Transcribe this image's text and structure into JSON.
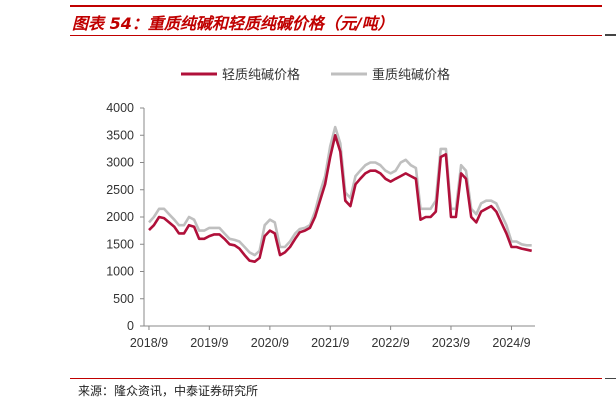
{
  "figure": {
    "title": "图表 54：重质纯碱和轻质纯碱价格（元/吨）",
    "source": "来源：隆众资讯，中泰证券研究所"
  },
  "chart_data": {
    "type": "line",
    "xlabel": "",
    "ylabel": "",
    "ylim": [
      0,
      4000
    ],
    "yticks": [
      0,
      500,
      1000,
      1500,
      2000,
      2500,
      3000,
      3500,
      4000
    ],
    "xlim": [
      "2018-09",
      "2025-01"
    ],
    "xticks": [
      "2018/9",
      "2019/9",
      "2020/9",
      "2021/9",
      "2022/9",
      "2023/9",
      "2024/9"
    ],
    "legend_position": "top-center",
    "grid": false,
    "series": [
      {
        "name": "轻质纯碱价格",
        "color": "#b0103a",
        "points": [
          [
            "2018-09-01",
            1760
          ],
          [
            "2018-10-01",
            1850
          ],
          [
            "2018-11-01",
            2000
          ],
          [
            "2018-12-01",
            1980
          ],
          [
            "2019-01-01",
            1900
          ],
          [
            "2019-02-01",
            1820
          ],
          [
            "2019-03-01",
            1700
          ],
          [
            "2019-04-01",
            1700
          ],
          [
            "2019-05-01",
            1850
          ],
          [
            "2019-06-01",
            1820
          ],
          [
            "2019-07-01",
            1600
          ],
          [
            "2019-08-01",
            1600
          ],
          [
            "2019-09-01",
            1650
          ],
          [
            "2019-10-01",
            1680
          ],
          [
            "2019-11-01",
            1680
          ],
          [
            "2019-12-01",
            1600
          ],
          [
            "2020-01-01",
            1500
          ],
          [
            "2020-02-01",
            1480
          ],
          [
            "2020-03-01",
            1420
          ],
          [
            "2020-04-01",
            1300
          ],
          [
            "2020-05-01",
            1200
          ],
          [
            "2020-06-01",
            1180
          ],
          [
            "2020-07-01",
            1250
          ],
          [
            "2020-08-01",
            1650
          ],
          [
            "2020-09-01",
            1750
          ],
          [
            "2020-10-01",
            1700
          ],
          [
            "2020-11-01",
            1300
          ],
          [
            "2020-12-01",
            1350
          ],
          [
            "2021-01-01",
            1450
          ],
          [
            "2021-02-01",
            1600
          ],
          [
            "2021-03-01",
            1720
          ],
          [
            "2021-04-01",
            1750
          ],
          [
            "2021-05-01",
            1800
          ],
          [
            "2021-06-01",
            2000
          ],
          [
            "2021-07-01",
            2300
          ],
          [
            "2021-08-01",
            2600
          ],
          [
            "2021-09-01",
            3100
          ],
          [
            "2021-10-01",
            3500
          ],
          [
            "2021-11-01",
            3200
          ],
          [
            "2021-12-01",
            2300
          ],
          [
            "2022-01-01",
            2200
          ],
          [
            "2022-02-01",
            2600
          ],
          [
            "2022-03-01",
            2700
          ],
          [
            "2022-04-01",
            2800
          ],
          [
            "2022-05-01",
            2850
          ],
          [
            "2022-06-01",
            2850
          ],
          [
            "2022-07-01",
            2800
          ],
          [
            "2022-08-01",
            2700
          ],
          [
            "2022-09-01",
            2650
          ],
          [
            "2022-10-01",
            2700
          ],
          [
            "2022-11-01",
            2750
          ],
          [
            "2022-12-01",
            2800
          ],
          [
            "2023-01-01",
            2750
          ],
          [
            "2023-02-01",
            2700
          ],
          [
            "2023-03-01",
            1950
          ],
          [
            "2023-04-01",
            2000
          ],
          [
            "2023-05-01",
            2000
          ],
          [
            "2023-06-01",
            2100
          ],
          [
            "2023-07-01",
            3100
          ],
          [
            "2023-08-01",
            3150
          ],
          [
            "2023-09-01",
            2000
          ],
          [
            "2023-10-01",
            2000
          ],
          [
            "2023-11-01",
            2800
          ],
          [
            "2023-12-01",
            2700
          ],
          [
            "2024-01-01",
            2000
          ],
          [
            "2024-02-01",
            1900
          ],
          [
            "2024-03-01",
            2100
          ],
          [
            "2024-04-01",
            2150
          ],
          [
            "2024-05-01",
            2200
          ],
          [
            "2024-06-01",
            2100
          ],
          [
            "2024-07-01",
            1900
          ],
          [
            "2024-08-01",
            1700
          ],
          [
            "2024-09-01",
            1450
          ],
          [
            "2024-10-01",
            1450
          ],
          [
            "2024-11-01",
            1420
          ],
          [
            "2024-12-01",
            1400
          ],
          [
            "2025-01-01",
            1380
          ]
        ]
      },
      {
        "name": "重质纯碱价格",
        "color": "#bfbfbf",
        "points": [
          [
            "2018-09-01",
            1900
          ],
          [
            "2018-10-01",
            2000
          ],
          [
            "2018-11-01",
            2150
          ],
          [
            "2018-12-01",
            2150
          ],
          [
            "2019-01-01",
            2050
          ],
          [
            "2019-02-01",
            1950
          ],
          [
            "2019-03-01",
            1850
          ],
          [
            "2019-04-01",
            1850
          ],
          [
            "2019-05-01",
            2000
          ],
          [
            "2019-06-01",
            1950
          ],
          [
            "2019-07-01",
            1750
          ],
          [
            "2019-08-01",
            1750
          ],
          [
            "2019-09-01",
            1800
          ],
          [
            "2019-10-01",
            1800
          ],
          [
            "2019-11-01",
            1800
          ],
          [
            "2019-12-01",
            1700
          ],
          [
            "2020-01-01",
            1600
          ],
          [
            "2020-02-01",
            1580
          ],
          [
            "2020-03-01",
            1550
          ],
          [
            "2020-04-01",
            1450
          ],
          [
            "2020-05-01",
            1350
          ],
          [
            "2020-06-01",
            1300
          ],
          [
            "2020-07-01",
            1380
          ],
          [
            "2020-08-01",
            1850
          ],
          [
            "2020-09-01",
            1950
          ],
          [
            "2020-10-01",
            1900
          ],
          [
            "2020-11-01",
            1450
          ],
          [
            "2020-12-01",
            1450
          ],
          [
            "2021-01-01",
            1550
          ],
          [
            "2021-02-01",
            1700
          ],
          [
            "2021-03-01",
            1780
          ],
          [
            "2021-04-01",
            1800
          ],
          [
            "2021-05-01",
            1850
          ],
          [
            "2021-06-01",
            2100
          ],
          [
            "2021-07-01",
            2450
          ],
          [
            "2021-08-01",
            2750
          ],
          [
            "2021-09-01",
            3300
          ],
          [
            "2021-10-01",
            3650
          ],
          [
            "2021-11-01",
            3350
          ],
          [
            "2021-12-01",
            2450
          ],
          [
            "2022-01-01",
            2350
          ],
          [
            "2022-02-01",
            2750
          ],
          [
            "2022-03-01",
            2850
          ],
          [
            "2022-04-01",
            2950
          ],
          [
            "2022-05-01",
            3000
          ],
          [
            "2022-06-01",
            3000
          ],
          [
            "2022-07-01",
            2950
          ],
          [
            "2022-08-01",
            2850
          ],
          [
            "2022-09-01",
            2800
          ],
          [
            "2022-10-01",
            2850
          ],
          [
            "2022-11-01",
            3000
          ],
          [
            "2022-12-01",
            3050
          ],
          [
            "2023-01-01",
            2950
          ],
          [
            "2023-02-01",
            2900
          ],
          [
            "2023-03-01",
            2150
          ],
          [
            "2023-04-01",
            2150
          ],
          [
            "2023-05-01",
            2150
          ],
          [
            "2023-06-01",
            2300
          ],
          [
            "2023-07-01",
            3250
          ],
          [
            "2023-08-01",
            3250
          ],
          [
            "2023-09-01",
            2150
          ],
          [
            "2023-10-01",
            2150
          ],
          [
            "2023-11-01",
            2950
          ],
          [
            "2023-12-01",
            2850
          ],
          [
            "2024-01-01",
            2150
          ],
          [
            "2024-02-01",
            2050
          ],
          [
            "2024-03-01",
            2250
          ],
          [
            "2024-04-01",
            2300
          ],
          [
            "2024-05-01",
            2300
          ],
          [
            "2024-06-01",
            2250
          ],
          [
            "2024-07-01",
            2050
          ],
          [
            "2024-08-01",
            1850
          ],
          [
            "2024-09-01",
            1550
          ],
          [
            "2024-10-01",
            1550
          ],
          [
            "2024-11-01",
            1500
          ],
          [
            "2024-12-01",
            1480
          ],
          [
            "2025-01-01",
            1480
          ]
        ]
      }
    ]
  }
}
